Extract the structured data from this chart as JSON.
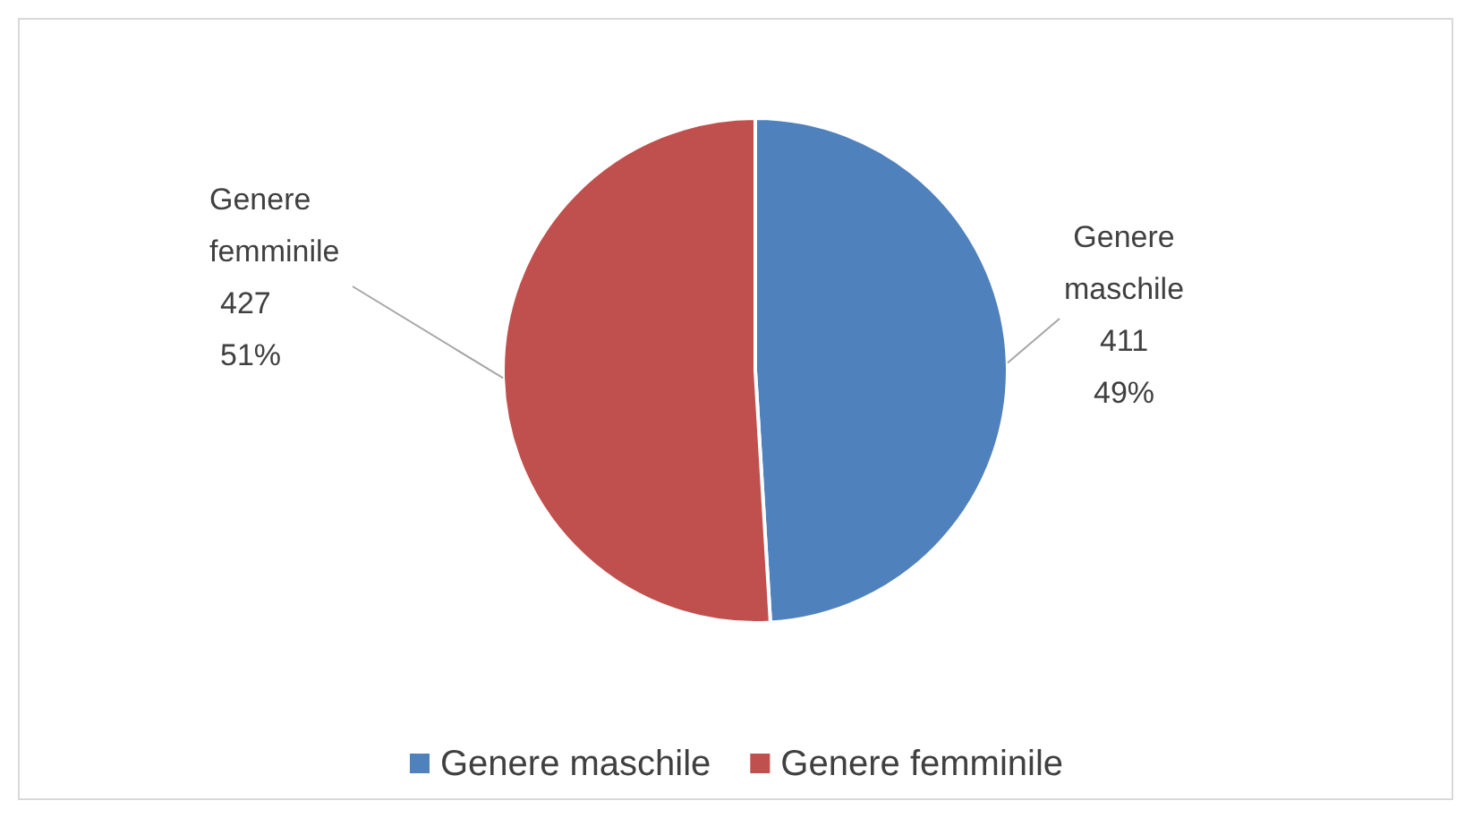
{
  "chart_data": {
    "type": "pie",
    "categories": [
      "Genere maschile",
      "Genere femminile"
    ],
    "values": [
      411,
      427
    ],
    "colors": [
      "#4f81bd",
      "#c0504d"
    ],
    "value_labels": [
      "411\n49%",
      "427\n51%"
    ],
    "legend": "bottom"
  }
}
